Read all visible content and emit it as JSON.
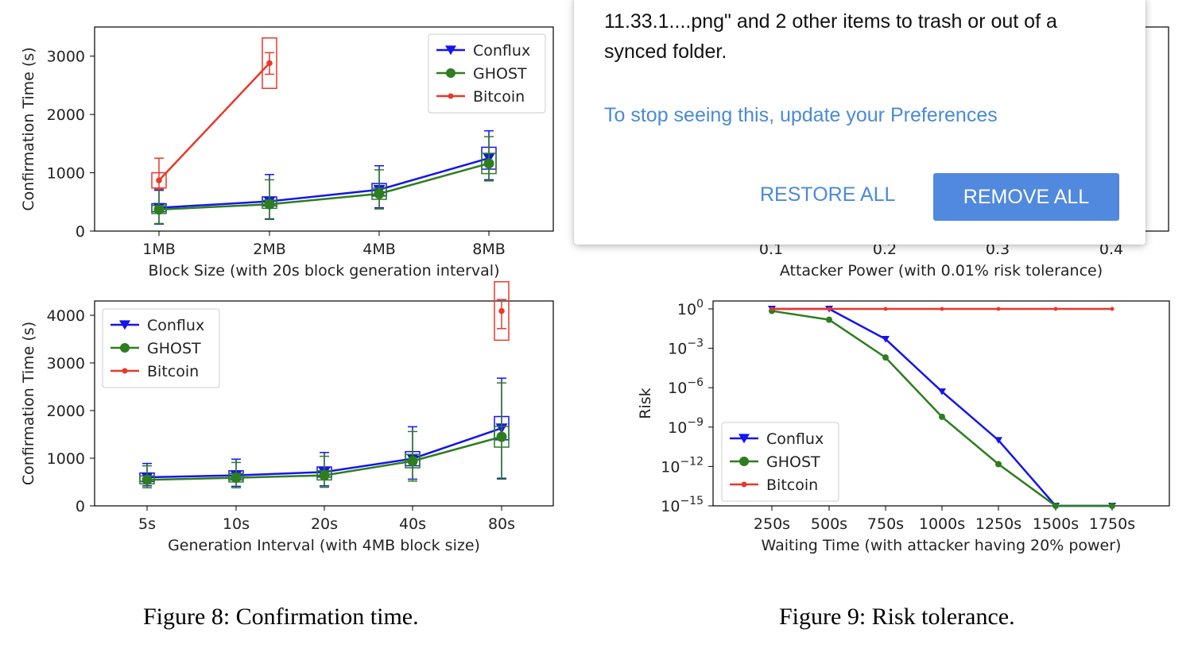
{
  "captions": {
    "fig8": "Figure 8: Confirmation time.",
    "fig9": "Figure 9: Risk tolerance."
  },
  "popup": {
    "message": "11.33.1....png\" and 2 other items to trash or out of a synced folder.",
    "preferences_link": "To stop seeing this, update your Preferences",
    "restore_label": "RESTORE ALL",
    "remove_label": "REMOVE ALL",
    "link_color": "#4a8ad8",
    "button_color": "#5089dd"
  },
  "chart_data": [
    {
      "id": "block-size",
      "type": "line",
      "xlabel": "Block Size (with 20s block generation interval)",
      "ylabel": "Confirmation Time (s)",
      "categories": [
        "1MB",
        "2MB",
        "4MB",
        "8MB"
      ],
      "ylim": [
        0,
        3500
      ],
      "yticks": [
        0,
        1000,
        2000,
        3000
      ],
      "legend_position": "top-right",
      "series": [
        {
          "name": "Conflux",
          "color": "#1414ee",
          "marker": "triangle-down",
          "values": [
            400,
            510,
            710,
            1250
          ],
          "err_low": [
            120,
            210,
            400,
            880
          ],
          "err_high": [
            700,
            970,
            1120,
            1720
          ]
        },
        {
          "name": "GHOST",
          "color": "#2e7d1f",
          "marker": "circle",
          "values": [
            370,
            460,
            640,
            1160
          ],
          "err_low": [
            130,
            200,
            380,
            860
          ],
          "err_high": [
            720,
            880,
            1050,
            1620
          ]
        },
        {
          "name": "Bitcoin",
          "color": "#e8392a",
          "marker": "dot",
          "values": [
            870,
            2880,
            null,
            null
          ],
          "err_low": [
            720,
            2690,
            null,
            null
          ],
          "err_high": [
            1250,
            3060,
            null,
            null
          ]
        }
      ]
    },
    {
      "id": "attacker-power",
      "type": "line",
      "xlabel": "Attacker Power (with 0.01% risk tolerance)",
      "categories": [
        "0.1",
        "0.2",
        "0.3",
        "0.4"
      ]
    },
    {
      "id": "generation-interval",
      "type": "line",
      "xlabel": "Generation Interval (with 4MB block size)",
      "ylabel": "Confirmation Time (s)",
      "categories": [
        "5s",
        "10s",
        "20s",
        "40s",
        "80s"
      ],
      "ylim": [
        0,
        4300
      ],
      "yticks": [
        0,
        1000,
        2000,
        3000,
        4000
      ],
      "legend_position": "top-left",
      "series": [
        {
          "name": "Conflux",
          "color": "#1414ee",
          "marker": "triangle-down",
          "values": [
            600,
            640,
            710,
            990,
            1630
          ],
          "err_low": [
            420,
            410,
            420,
            560,
            580
          ],
          "err_high": [
            890,
            980,
            1120,
            1660,
            2680
          ]
        },
        {
          "name": "GHOST",
          "color": "#2e7d1f",
          "marker": "circle",
          "values": [
            545,
            590,
            640,
            940,
            1450
          ],
          "err_low": [
            380,
            380,
            390,
            520,
            560
          ],
          "err_high": [
            840,
            910,
            1040,
            1560,
            2580
          ]
        },
        {
          "name": "Bitcoin",
          "color": "#e8392a",
          "marker": "dot",
          "values": [
            null,
            null,
            null,
            null,
            4090
          ],
          "err_low": [
            null,
            null,
            null,
            null,
            3720
          ],
          "err_high": [
            null,
            null,
            null,
            null,
            4330
          ]
        }
      ]
    },
    {
      "id": "risk",
      "type": "line",
      "xlabel": "Waiting Time (with attacker having 20% power)",
      "ylabel": "Risk",
      "categories": [
        "250s",
        "500s",
        "750s",
        "1000s",
        "1250s",
        "1500s",
        "1750s"
      ],
      "y_scale": "log",
      "ylim": [
        1e-15,
        1
      ],
      "ytick_exponents": [
        0,
        -3,
        -6,
        -9,
        -12,
        -15
      ],
      "legend_position": "bottom-left",
      "series": [
        {
          "name": "Conflux",
          "color": "#1414ee",
          "marker": "triangle-down",
          "values": [
            1,
            1,
            0.005,
            5e-07,
            1e-10,
            1e-15,
            1e-15
          ]
        },
        {
          "name": "GHOST",
          "color": "#2e7d1f",
          "marker": "circle",
          "values": [
            0.7,
            0.15,
            0.0002,
            6e-09,
            1.5e-12,
            1e-15,
            1e-15
          ]
        },
        {
          "name": "Bitcoin",
          "color": "#e8392a",
          "marker": "dot",
          "values": [
            1,
            1,
            1,
            1,
            1,
            1,
            1
          ]
        }
      ]
    }
  ]
}
